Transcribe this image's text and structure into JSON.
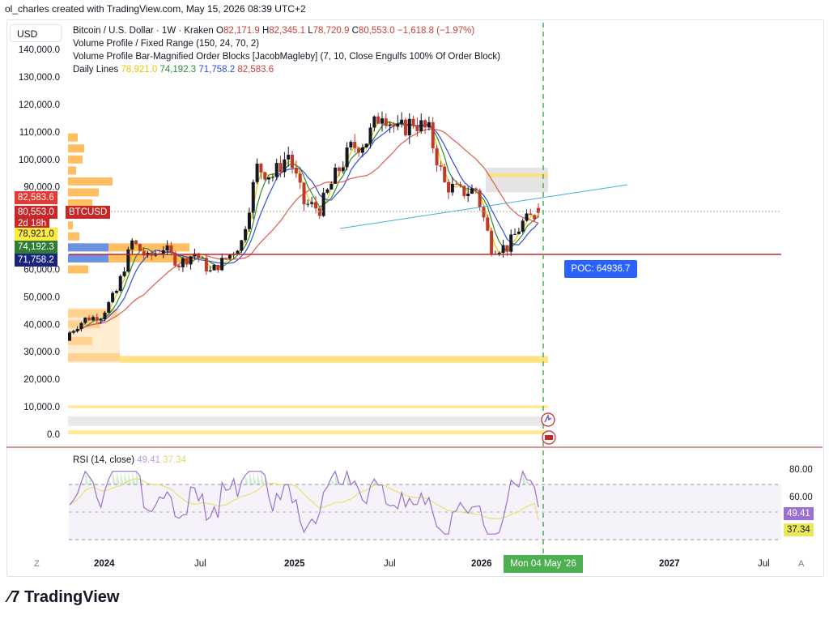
{
  "header": {
    "created": "ol_charles created with TradingView.com, May 15, 2026 08:39 UTC+2"
  },
  "currency": "USD",
  "legend": {
    "symbol": "Bitcoin / U.S. Dollar · 1W · Kraken",
    "ohlc": {
      "o_label": "O",
      "o": "82,171.9",
      "h_label": "H",
      "h": "82,345.1",
      "l_label": "L",
      "l": "78,720.9",
      "c_label": "C",
      "c": "80,553.0",
      "change": "−1,618.8 (−1.97%)"
    },
    "volume_profile": "Volume Profile / Fixed Range (150, 24, 70, 2)",
    "order_blocks": "Volume Profile Bar-Magnified Order Blocks [JacobMagleby] (7, 10, Close Engulfs 100% Of Order Block)",
    "daily_lines_label": "Daily Lines",
    "daily_lines": [
      {
        "value": "78,921.0",
        "color": "#e8c700"
      },
      {
        "value": "74,192.3",
        "color": "#2e8b2e"
      },
      {
        "value": "71,758.2",
        "color": "#2e4fd9"
      },
      {
        "value": "82,583.6",
        "color": "#c8403a"
      }
    ]
  },
  "price_tags": {
    "t1": {
      "value": "82,583.6",
      "bg": "#e53935"
    },
    "t2": {
      "value": "80,553.0",
      "bg": "#c62828",
      "name": "BTCUSD"
    },
    "t2b": {
      "value": "2d 18h",
      "bg": "#c62828"
    },
    "t3": {
      "value": "78,921.0",
      "bg": "#ffeb3b"
    },
    "t4": {
      "value": "74,192.3",
      "bg": "#2e7d32"
    },
    "t5": {
      "value": "71,758.2",
      "bg": "#1a237e"
    }
  },
  "poc": "POC: 64936.7",
  "rsi": {
    "label": "RSI (14, close)",
    "value": "49.41",
    "ma": "37.34",
    "levels": [
      "80.00",
      "60.00"
    ]
  },
  "date_cursor": "Mon 04 May '26",
  "x_axis": [
    "2024",
    "Jul",
    "2025",
    "Jul",
    "2026",
    "2027",
    "Jul"
  ],
  "corner_left": "Z",
  "corner_right": "A",
  "logo": "TradingView",
  "chart_data": {
    "type": "candlestick",
    "interval": "1W",
    "y_axis": {
      "ticks": [
        "140,000.0",
        "130,000.0",
        "120,000.0",
        "110,000.0",
        "100,000.0",
        "90,000.0",
        "60,000.0",
        "50,000.0",
        "40,000.0",
        "30,000.0",
        "20,000.0",
        "10,000.0",
        "0.0"
      ],
      "range": [
        0,
        140000
      ]
    },
    "close_path": [
      [
        "2023-11",
        37000
      ],
      [
        "2023-12",
        42000
      ],
      [
        "2024-01",
        43000
      ],
      [
        "2024-02",
        52000
      ],
      [
        "2024-03",
        70000
      ],
      [
        "2024-04",
        64000
      ],
      [
        "2024-05",
        68000
      ],
      [
        "2024-06",
        62000
      ],
      [
        "2024-07",
        66000
      ],
      [
        "2024-08",
        59000
      ],
      [
        "2024-09",
        64000
      ],
      [
        "2024-10",
        70000
      ],
      [
        "2024-11",
        97000
      ],
      [
        "2024-12",
        94000
      ],
      [
        "2025-01",
        102000
      ],
      [
        "2025-02",
        84000
      ],
      [
        "2025-03",
        82000
      ],
      [
        "2025-04",
        94000
      ],
      [
        "2025-05",
        104000
      ],
      [
        "2025-06",
        107000
      ],
      [
        "2025-07",
        118000
      ],
      [
        "2025-08",
        110000
      ],
      [
        "2025-09",
        114000
      ],
      [
        "2025-10",
        110000
      ],
      [
        "2025-11",
        91000
      ],
      [
        "2025-12",
        88000
      ],
      [
        "2026-01",
        89000
      ],
      [
        "2026-02",
        68000
      ],
      [
        "2026-03",
        68000
      ],
      [
        "2026-04",
        77000
      ],
      [
        "2026-05",
        80553
      ]
    ],
    "moving_averages": [
      {
        "name": "",
        "color": "#e8c700",
        "last": 78921.0
      },
      {
        "name": "",
        "color": "#2e8b2e",
        "last": 74192.3
      },
      {
        "name": "",
        "color": "#2e4fd9",
        "last": 71758.2
      },
      {
        "name": "",
        "color": "#e05a4f",
        "last": 82583.6
      }
    ],
    "horizontal_line": 64936.7,
    "trendline": {
      "from": [
        "2025-03",
        79000
      ],
      "to": [
        "2026-09",
        89000
      ]
    }
  }
}
